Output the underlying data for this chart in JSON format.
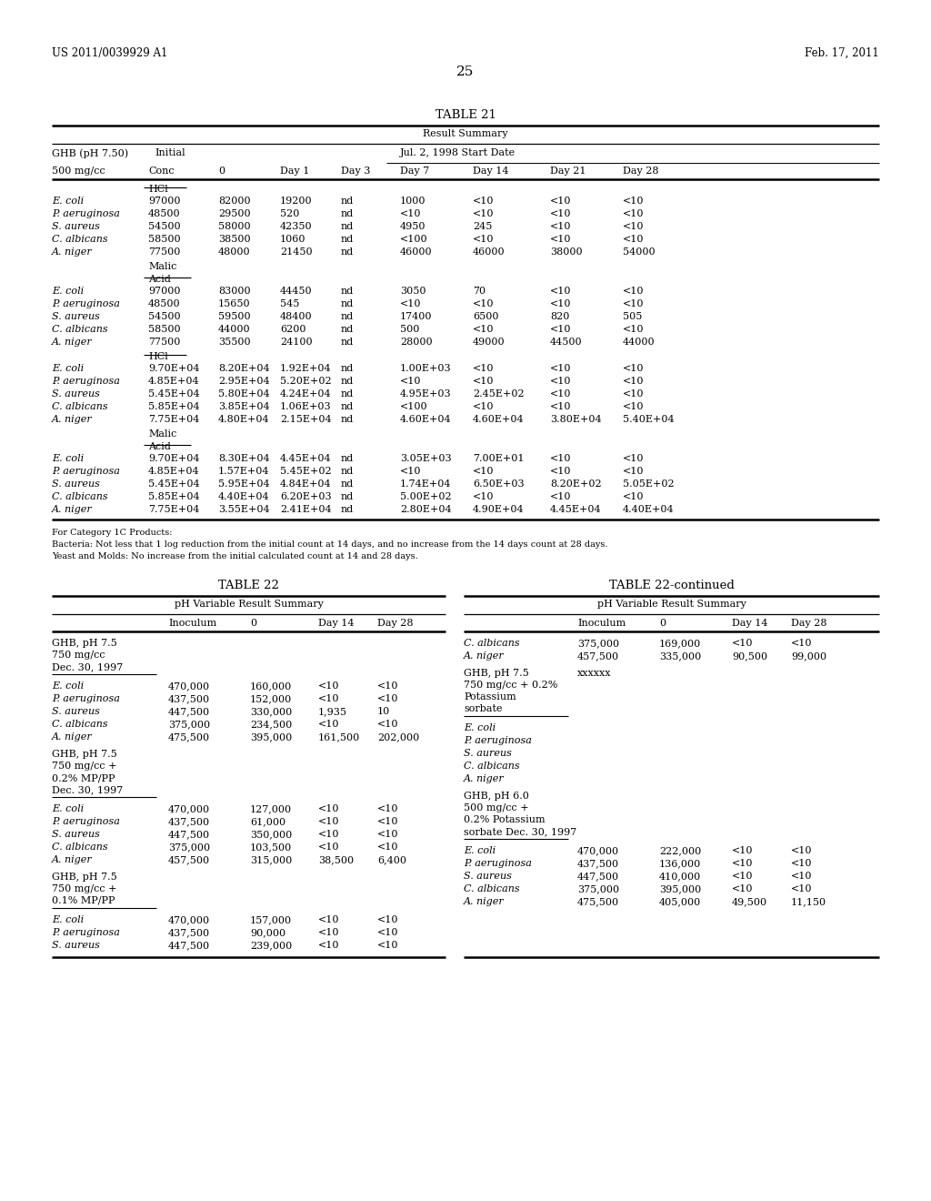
{
  "page_header_left": "US 2011/0039929 A1",
  "page_header_right": "Feb. 17, 2011",
  "page_number": "25",
  "background_color": "#ffffff",
  "table21": {
    "title": "TABLE 21",
    "subtitle": "Result Summary",
    "hdr1_col1": "GHB (pH 7.50)",
    "hdr1_col2": "Initial",
    "hdr1_col3": "Jul. 2, 1998 Start Date",
    "hdr2": [
      "500 mg/cc",
      "Conc",
      "0",
      "Day 1",
      "Day 3",
      "Day 7",
      "Day 14",
      "Day 21",
      "Day 28"
    ],
    "acid1": "HCl",
    "section1": [
      [
        "E. coli",
        "97000",
        "82000",
        "19200",
        "nd",
        "1000",
        "<10",
        "<10",
        "<10"
      ],
      [
        "P. aeruginosa",
        "48500",
        "29500",
        "520",
        "nd",
        "<10",
        "<10",
        "<10",
        "<10"
      ],
      [
        "S. aureus",
        "54500",
        "58000",
        "42350",
        "nd",
        "4950",
        "245",
        "<10",
        "<10"
      ],
      [
        "C. albicans",
        "58500",
        "38500",
        "1060",
        "nd",
        "<100",
        "<10",
        "<10",
        "<10"
      ],
      [
        "A. niger",
        "77500",
        "48000",
        "21450",
        "nd",
        "46000",
        "46000",
        "38000",
        "54000"
      ]
    ],
    "acid2_line1": "Malic",
    "acid2_line2": "Acid",
    "section2": [
      [
        "E. coli",
        "97000",
        "83000",
        "44450",
        "nd",
        "3050",
        "70",
        "<10",
        "<10"
      ],
      [
        "P. aeruginosa",
        "48500",
        "15650",
        "545",
        "nd",
        "<10",
        "<10",
        "<10",
        "<10"
      ],
      [
        "S. aureus",
        "54500",
        "59500",
        "48400",
        "nd",
        "17400",
        "6500",
        "820",
        "505"
      ],
      [
        "C. albicans",
        "58500",
        "44000",
        "6200",
        "nd",
        "500",
        "<10",
        "<10",
        "<10"
      ],
      [
        "A. niger",
        "77500",
        "35500",
        "24100",
        "nd",
        "28000",
        "49000",
        "44500",
        "44000"
      ]
    ],
    "acid3": "HCl",
    "section3": [
      [
        "E. coli",
        "9.70E+04",
        "8.20E+04",
        "1.92E+04",
        "nd",
        "1.00E+03",
        "<10",
        "<10",
        "<10"
      ],
      [
        "P. aeruginosa",
        "4.85E+04",
        "2.95E+04",
        "5.20E+02",
        "nd",
        "<10",
        "<10",
        "<10",
        "<10"
      ],
      [
        "S. aureus",
        "5.45E+04",
        "5.80E+04",
        "4.24E+04",
        "nd",
        "4.95E+03",
        "2.45E+02",
        "<10",
        "<10"
      ],
      [
        "C. albicans",
        "5.85E+04",
        "3.85E+04",
        "1.06E+03",
        "nd",
        "<100",
        "<10",
        "<10",
        "<10"
      ],
      [
        "A. niger",
        "7.75E+04",
        "4.80E+04",
        "2.15E+04",
        "nd",
        "4.60E+04",
        "4.60E+04",
        "3.80E+04",
        "5.40E+04"
      ]
    ],
    "acid4_line1": "Malic",
    "acid4_line2": "Acid",
    "section4": [
      [
        "E. coli",
        "9.70E+04",
        "8.30E+04",
        "4.45E+04",
        "nd",
        "3.05E+03",
        "7.00E+01",
        "<10",
        "<10"
      ],
      [
        "P. aeruginosa",
        "4.85E+04",
        "1.57E+04",
        "5.45E+02",
        "nd",
        "<10",
        "<10",
        "<10",
        "<10"
      ],
      [
        "S. aureus",
        "5.45E+04",
        "5.95E+04",
        "4.84E+04",
        "nd",
        "1.74E+04",
        "6.50E+03",
        "8.20E+02",
        "5.05E+02"
      ],
      [
        "C. albicans",
        "5.85E+04",
        "4.40E+04",
        "6.20E+03",
        "nd",
        "5.00E+02",
        "<10",
        "<10",
        "<10"
      ],
      [
        "A. niger",
        "7.75E+04",
        "3.55E+04",
        "2.41E+04",
        "nd",
        "2.80E+04",
        "4.90E+04",
        "4.45E+04",
        "4.40E+04"
      ]
    ],
    "footnote1": "For Category 1C Products:",
    "footnote2": "Bacteria: Not less that 1 log reduction from the initial count at 14 days, and no increase from the 14 days count at 28 days.",
    "footnote3": "Yeast and Molds: No increase from the initial calculated count at 14 and 28 days."
  },
  "table22_left": {
    "title": "TABLE 22",
    "subtitle": "pH Variable Result Summary",
    "col_labels": [
      "",
      "Inoculum",
      "0",
      "Day 14",
      "Day 28"
    ],
    "grp1_label": [
      "GHB, pH 7.5",
      "750 mg/cc",
      "Dec. 30, 1997"
    ],
    "grp1_rows": [
      [
        "E. coli",
        "470,000",
        "160,000",
        "<10",
        "<10"
      ],
      [
        "P. aeruginosa",
        "437,500",
        "152,000",
        "<10",
        "<10"
      ],
      [
        "S. aureus",
        "447,500",
        "330,000",
        "1,935",
        "10"
      ],
      [
        "C. albicans",
        "375,000",
        "234,500",
        "<10",
        "<10"
      ],
      [
        "A. niger",
        "475,500",
        "395,000",
        "161,500",
        "202,000"
      ]
    ],
    "grp2_label": [
      "GHB, pH 7.5",
      "750 mg/cc +",
      "0.2% MP/PP",
      "Dec. 30, 1997"
    ],
    "grp2_rows": [
      [
        "E. coli",
        "470,000",
        "127,000",
        "<10",
        "<10"
      ],
      [
        "P. aeruginosa",
        "437,500",
        "61,000",
        "<10",
        "<10"
      ],
      [
        "S. aureus",
        "447,500",
        "350,000",
        "<10",
        "<10"
      ],
      [
        "C. albicans",
        "375,000",
        "103,500",
        "<10",
        "<10"
      ],
      [
        "A. niger",
        "457,500",
        "315,000",
        "38,500",
        "6,400"
      ]
    ],
    "grp3_label": [
      "GHB, pH 7.5",
      "750 mg/cc +",
      "0.1% MP/PP"
    ],
    "grp3_rows": [
      [
        "E. coli",
        "470,000",
        "157,000",
        "<10",
        "<10"
      ],
      [
        "P. aeruginosa",
        "437,500",
        "90,000",
        "<10",
        "<10"
      ],
      [
        "S. aureus",
        "447,500",
        "239,000",
        "<10",
        "<10"
      ]
    ]
  },
  "table22_right": {
    "title": "TABLE 22-continued",
    "subtitle": "pH Variable Result Summary",
    "col_labels": [
      "",
      "Inoculum",
      "0",
      "Day 14",
      "Day 28"
    ],
    "grp1_rows": [
      [
        "C. albicans",
        "375,000",
        "169,000",
        "<10",
        "<10"
      ],
      [
        "A. niger",
        "457,500",
        "335,000",
        "90,500",
        "99,000"
      ]
    ],
    "grp2_label": [
      "GHB, pH 7.5",
      "750 mg/cc + 0.2%",
      "Potassium",
      "sorbate"
    ],
    "grp2_marker": "xxxxxx",
    "grp2_rows": [
      [
        "E. coli",
        "",
        "",
        "",
        ""
      ],
      [
        "P. aeruginosa",
        "",
        "",
        "",
        ""
      ],
      [
        "S. aureus",
        "",
        "",
        "",
        ""
      ],
      [
        "C. albicans",
        "",
        "",
        "",
        ""
      ],
      [
        "A. niger",
        "",
        "",
        "",
        ""
      ]
    ],
    "grp3_label": [
      "GHB, pH 6.0",
      "500 mg/cc +",
      "0.2% Potassium",
      "sorbate Dec. 30, 1997"
    ],
    "grp3_rows": [
      [
        "E. coli",
        "470,000",
        "222,000",
        "<10",
        "<10"
      ],
      [
        "P. aeruginosa",
        "437,500",
        "136,000",
        "<10",
        "<10"
      ],
      [
        "S. aureus",
        "447,500",
        "410,000",
        "<10",
        "<10"
      ],
      [
        "C. albicans",
        "375,000",
        "395,000",
        "<10",
        "<10"
      ],
      [
        "A. niger",
        "475,500",
        "405,000",
        "49,500",
        "11,150"
      ]
    ]
  }
}
